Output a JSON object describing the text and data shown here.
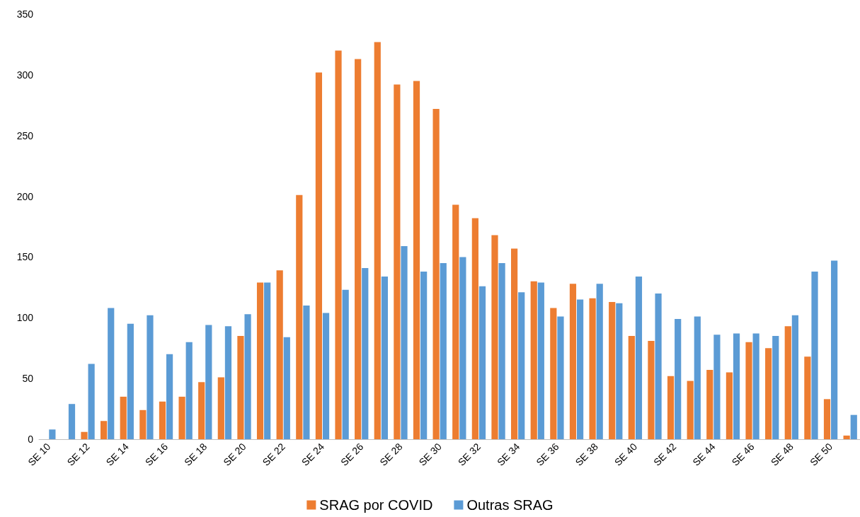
{
  "chart_data": {
    "type": "bar",
    "categories": [
      "SE 10",
      null,
      "SE 12",
      null,
      "SE 14",
      null,
      "SE 16",
      null,
      "SE 18",
      null,
      "SE 20",
      null,
      "SE 22",
      null,
      "SE 24",
      null,
      "SE 26",
      null,
      "SE 28",
      null,
      "SE 30",
      null,
      "SE 32",
      null,
      "SE 34",
      null,
      "SE 36",
      null,
      "SE 38",
      null,
      "SE 40",
      null,
      "SE 42",
      null,
      "SE 44",
      null,
      "SE 46",
      null,
      "SE 48",
      null,
      "SE 50",
      null
    ],
    "series": [
      {
        "name": "SRAG por COVID",
        "color": "#ed7d31",
        "values": [
          0,
          0,
          6,
          15,
          35,
          24,
          31,
          35,
          47,
          51,
          85,
          129,
          139,
          201,
          302,
          320,
          313,
          327,
          292,
          295,
          272,
          193,
          182,
          168,
          157,
          130,
          108,
          128,
          116,
          113,
          85,
          81,
          52,
          48,
          57,
          55,
          80,
          75,
          93,
          68,
          33,
          3
        ]
      },
      {
        "name": "Outras SRAG",
        "color": "#5b9bd5",
        "values": [
          8,
          29,
          62,
          108,
          95,
          102,
          70,
          80,
          94,
          93,
          103,
          129,
          84,
          110,
          104,
          123,
          141,
          134,
          159,
          138,
          145,
          150,
          126,
          145,
          121,
          129,
          101,
          115,
          128,
          112,
          134,
          120,
          99,
          101,
          86,
          87,
          87,
          85,
          102,
          138,
          147,
          20
        ]
      }
    ],
    "ylim": [
      0,
      350
    ],
    "yticks": [
      0,
      50,
      100,
      150,
      200,
      250,
      300,
      350
    ],
    "grid": false,
    "legend": "bottom"
  }
}
